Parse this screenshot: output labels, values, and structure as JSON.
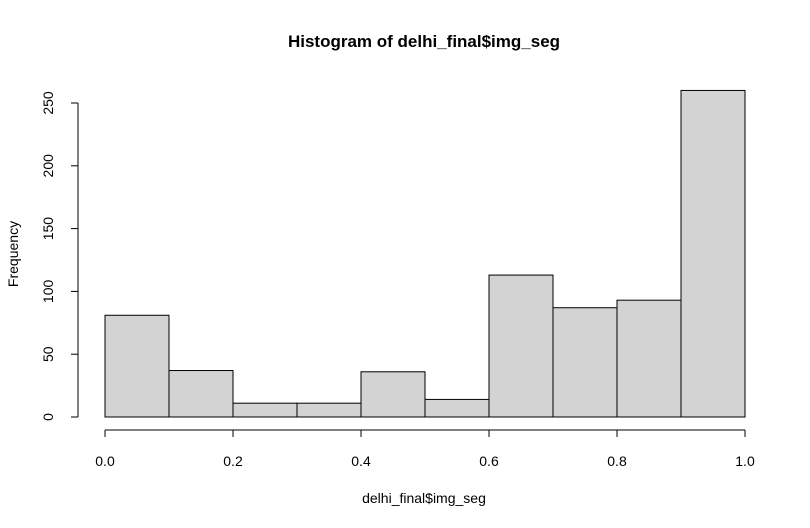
{
  "chart_data": {
    "type": "bar",
    "title": "Histogram of delhi_final$img_seg",
    "xlabel": "delhi_final$img_seg",
    "ylabel": "Frequency",
    "bins": [
      {
        "start": 0.0,
        "end": 0.1,
        "count": 81
      },
      {
        "start": 0.1,
        "end": 0.2,
        "count": 37
      },
      {
        "start": 0.2,
        "end": 0.3,
        "count": 11
      },
      {
        "start": 0.3,
        "end": 0.4,
        "count": 11
      },
      {
        "start": 0.4,
        "end": 0.5,
        "count": 36
      },
      {
        "start": 0.5,
        "end": 0.6,
        "count": 14
      },
      {
        "start": 0.6,
        "end": 0.7,
        "count": 113
      },
      {
        "start": 0.7,
        "end": 0.8,
        "count": 87
      },
      {
        "start": 0.8,
        "end": 0.9,
        "count": 93
      },
      {
        "start": 0.9,
        "end": 1.0,
        "count": 260
      }
    ],
    "xlim": [
      0,
      1
    ],
    "ylim": [
      0,
      250
    ],
    "xticks": [
      "0.0",
      "0.2",
      "0.4",
      "0.6",
      "0.8",
      "1.0"
    ],
    "yticks": [
      "0",
      "50",
      "100",
      "150",
      "200",
      "250"
    ],
    "bar_color": "#d3d3d3",
    "border_color": "#000000",
    "grid": false,
    "legend": false
  }
}
